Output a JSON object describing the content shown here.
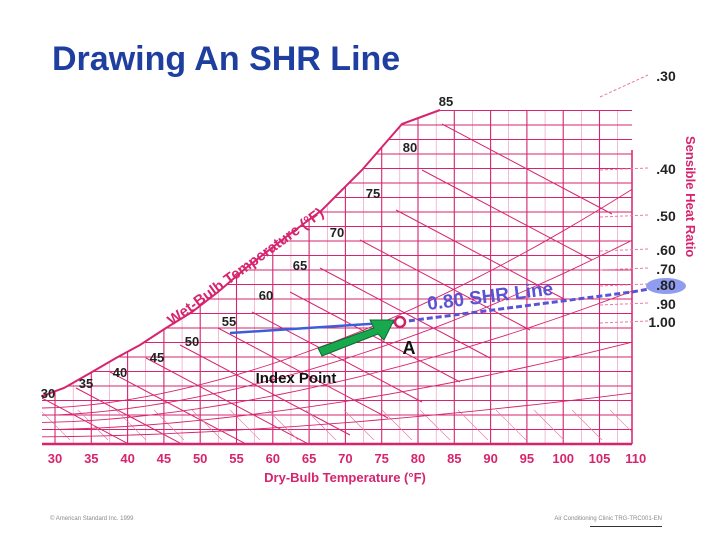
{
  "title": "Drawing An SHR Line",
  "colors": {
    "grid": "#d6246e",
    "grid_light": "#e87aa7",
    "title": "#1f3fa0",
    "shr_line": "#5b53d6",
    "index_line": "#3b5fd9",
    "arrow": "#1aa84f",
    "point": "#cc2266",
    "highlight": "#8f9cf0"
  },
  "chart": {
    "x_label": "Dry-Bulb Temperature (°F)",
    "x_ticks": [
      "30",
      "35",
      "40",
      "45",
      "50",
      "55",
      "60",
      "65",
      "70",
      "75",
      "80",
      "85",
      "90",
      "95",
      "100",
      "105",
      "110"
    ],
    "wet_bulb_label": "Wet-Bulb Temperature (°F)",
    "wet_bulb_values": [
      "30",
      "35",
      "40",
      "45",
      "50",
      "55",
      "60",
      "65",
      "70",
      "75",
      "80",
      "85"
    ],
    "shr_axis_label": "Sensible Heat Ratio",
    "shr_values": [
      ".30",
      ".40",
      ".50",
      ".60",
      ".70",
      ".80",
      ".90",
      "1.00"
    ],
    "shr_highlight": ".80",
    "shr_line_label": "0.80 SHR Line",
    "point_label": "A",
    "index_label": "Index Point"
  },
  "footer": {
    "left": "© American Standard Inc. 1999",
    "right": "Air Conditioning Clinic TRG-TRC001-EN"
  }
}
